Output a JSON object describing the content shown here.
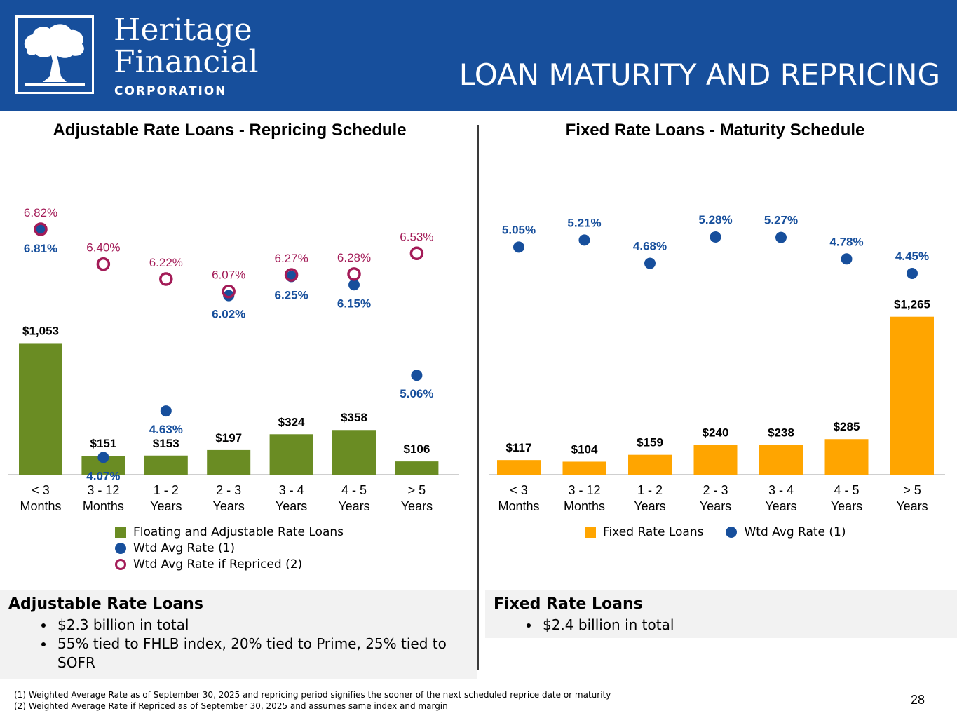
{
  "header": {
    "company_line1": "Heritage",
    "company_line2": "Financial",
    "company_line3": "CORPORATION",
    "title": "LOAN MATURITY AND REPRICING",
    "background": "#174f9c"
  },
  "colors": {
    "green": "#6a8c23",
    "orange": "#ffa500",
    "blue": "#174f9c",
    "maroon": "#a31b57"
  },
  "chart_data": [
    {
      "type": "bar",
      "title": "Adjustable Rate Loans - Repricing Schedule",
      "categories": [
        [
          "< 3",
          "Months"
        ],
        [
          "3 - 12",
          "Months"
        ],
        [
          "1 - 2",
          "Years"
        ],
        [
          "2 - 3",
          "Years"
        ],
        [
          "3 - 4",
          "Years"
        ],
        [
          "4 - 5",
          "Years"
        ],
        [
          "> 5",
          "Years"
        ]
      ],
      "series": [
        {
          "name": "Floating and Adjustable Rate Loans",
          "kind": "bar",
          "values": [
            1053,
            151,
            153,
            197,
            324,
            358,
            106
          ],
          "labels": [
            "$1,053",
            "$151",
            "$153",
            "$197",
            "$324",
            "$358",
            "$106"
          ]
        },
        {
          "name": "Wtd Avg Rate (1)",
          "kind": "dot",
          "values": [
            6.81,
            4.07,
            4.63,
            6.02,
            6.25,
            6.15,
            5.06
          ],
          "labels": [
            "6.81%",
            "4.07%",
            "4.63%",
            "6.02%",
            "6.25%",
            "6.15%",
            "5.06%"
          ]
        },
        {
          "name": "Wtd Avg Rate if Repriced (2)",
          "kind": "ring",
          "values": [
            6.82,
            6.4,
            6.22,
            6.07,
            6.27,
            6.28,
            6.53
          ],
          "labels": [
            "6.82%",
            "6.40%",
            "6.22%",
            "6.07%",
            "6.27%",
            "6.28%",
            "6.53%"
          ]
        }
      ],
      "legend": [
        "Floating and Adjustable Rate Loans",
        "Wtd Avg Rate (1)",
        "Wtd Avg Rate if Repriced (2)"
      ]
    },
    {
      "type": "bar",
      "title": "Fixed Rate Loans - Maturity Schedule",
      "categories": [
        [
          "< 3",
          "Months"
        ],
        [
          "3 - 12",
          "Months"
        ],
        [
          "1 - 2",
          "Years"
        ],
        [
          "2 - 3",
          "Years"
        ],
        [
          "3 - 4",
          "Years"
        ],
        [
          "4 - 5",
          "Years"
        ],
        [
          "> 5",
          "Years"
        ]
      ],
      "series": [
        {
          "name": "Fixed Rate Loans",
          "kind": "bar",
          "values": [
            117,
            104,
            159,
            240,
            238,
            285,
            1265
          ],
          "labels": [
            "$117",
            "$104",
            "$159",
            "$240",
            "$238",
            "$285",
            "$1,265"
          ]
        },
        {
          "name": "Wtd Avg Rate (1)",
          "kind": "dot",
          "values": [
            5.05,
            5.21,
            4.68,
            5.28,
            5.27,
            4.78,
            4.45
          ],
          "labels": [
            "5.05%",
            "5.21%",
            "4.68%",
            "5.28%",
            "5.27%",
            "4.78%",
            "4.45%"
          ]
        }
      ],
      "legend": [
        "Fixed Rate Loans",
        "Wtd Avg Rate (1)"
      ]
    }
  ],
  "adjustable_box": {
    "heading": "Adjustable Rate Loans",
    "bullets": [
      "$2.3 billion in total",
      "55% tied to FHLB index, 20% tied to Prime, 25% tied to SOFR"
    ]
  },
  "fixed_box": {
    "heading": "Fixed Rate Loans",
    "bullets": [
      "$2.4 billion in total"
    ]
  },
  "footnotes": [
    "(1) Weighted Average Rate as of September 30, 2025 and repricing period signifies the sooner of the next scheduled reprice date or maturity",
    "(2) Weighted Average Rate if Repriced as of September 30, 2025 and assumes same index and margin"
  ],
  "page_number": "28"
}
